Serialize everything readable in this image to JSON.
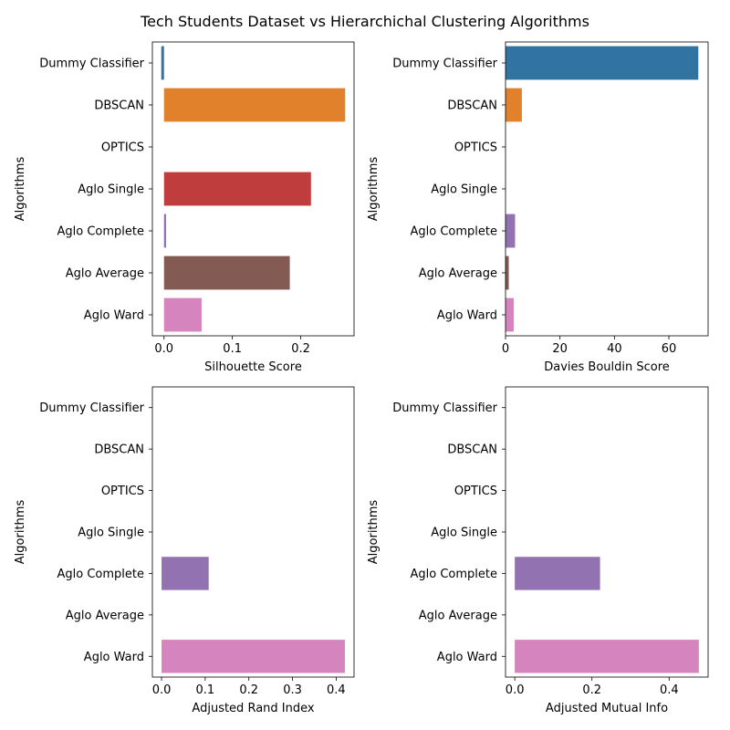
{
  "figure": {
    "title": "Tech Students Dataset vs Hierarchichal Clustering Algorithms"
  },
  "colors": {
    "Dummy Classifier": "#3274a1",
    "DBSCAN": "#e1812c",
    "OPTICS": "#3a923a",
    "Aglo Single": "#c03d3e",
    "Aglo Complete": "#9372b2",
    "Aglo Average": "#845b53",
    "Aglo Ward": "#d684bd"
  },
  "chart_data": [
    {
      "type": "bar",
      "orientation": "horizontal",
      "categories": [
        "Dummy Classifier",
        "DBSCAN",
        "OPTICS",
        "Aglo Single",
        "Aglo Complete",
        "Aglo Average",
        "Aglo Ward"
      ],
      "values": [
        -0.004,
        0.265,
        0.0,
        0.215,
        0.003,
        0.184,
        0.055
      ],
      "xlabel": "Silhouette Score",
      "ylabel": "Algorithms",
      "xlim": [
        -0.017,
        0.278
      ],
      "xticks": [
        0.0,
        0.1,
        0.2
      ],
      "xtick_labels": [
        "0.0",
        "0.1",
        "0.2"
      ],
      "grid": false
    },
    {
      "type": "bar",
      "orientation": "horizontal",
      "categories": [
        "Dummy Classifier",
        "DBSCAN",
        "OPTICS",
        "Aglo Single",
        "Aglo Complete",
        "Aglo Average",
        "Aglo Ward"
      ],
      "values": [
        70.8,
        6.0,
        0.0,
        0.0,
        3.5,
        1.2,
        3.0
      ],
      "xlabel": "Davies Bouldin Score",
      "ylabel": "Algorithms",
      "xlim": [
        0,
        74.4
      ],
      "xticks": [
        0,
        20,
        40,
        60
      ],
      "xtick_labels": [
        "0",
        "20",
        "40",
        "60"
      ],
      "grid": false
    },
    {
      "type": "bar",
      "orientation": "horizontal",
      "categories": [
        "Dummy Classifier",
        "DBSCAN",
        "OPTICS",
        "Aglo Single",
        "Aglo Complete",
        "Aglo Average",
        "Aglo Ward"
      ],
      "values": [
        0.0,
        0.0,
        0.0,
        0.0,
        0.108,
        0.0,
        0.42
      ],
      "xlabel": "Adjusted Rand Index",
      "ylabel": "Algorithms",
      "xlim": [
        -0.021,
        0.441
      ],
      "xticks": [
        0.0,
        0.1,
        0.2,
        0.3,
        0.4
      ],
      "xtick_labels": [
        "0.0",
        "0.1",
        "0.2",
        "0.3",
        "0.4"
      ],
      "grid": false
    },
    {
      "type": "bar",
      "orientation": "horizontal",
      "categories": [
        "Dummy Classifier",
        "DBSCAN",
        "OPTICS",
        "Aglo Single",
        "Aglo Complete",
        "Aglo Average",
        "Aglo Ward"
      ],
      "values": [
        0.0,
        0.0,
        0.0,
        0.0,
        0.221,
        0.0,
        0.477
      ],
      "xlabel": "Adjusted Mutual Info",
      "ylabel": "Algorithms",
      "xlim": [
        -0.024,
        0.501
      ],
      "xticks": [
        0.0,
        0.2,
        0.4
      ],
      "xtick_labels": [
        "0.0",
        "0.2",
        "0.4"
      ],
      "grid": false
    }
  ]
}
